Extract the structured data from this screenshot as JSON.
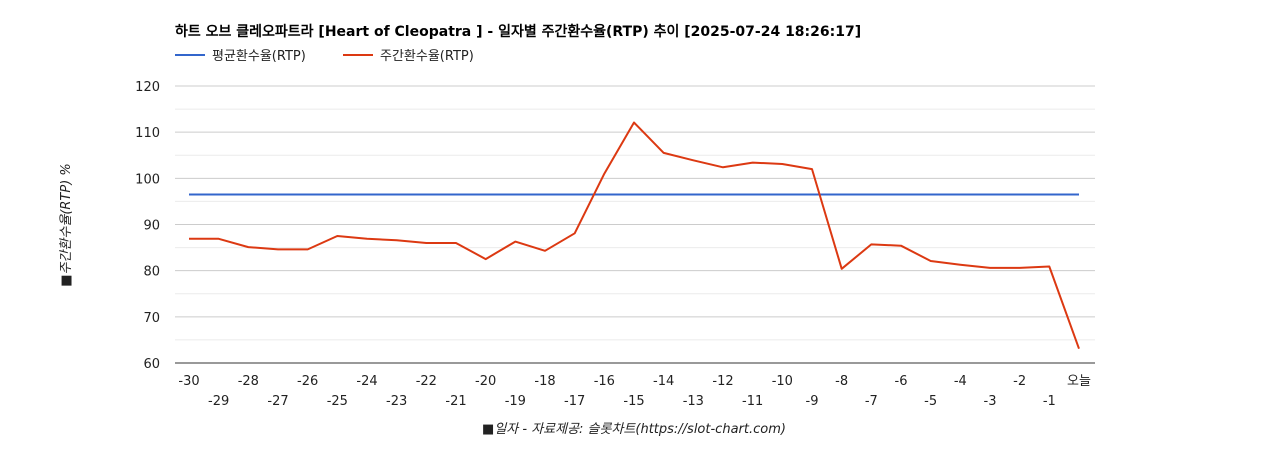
{
  "chart_data": {
    "type": "line",
    "title": "하트 오브 클레오파트라 [Heart of Cleopatra ] - 일자별 주간환수율(RTP) 추이 [2025-07-24 18:26:17]",
    "xlabel": "■일자 - 자료제공: 슬롯차트(https://slot-chart.com)",
    "ylabel": "■주간환수율(RTP) %",
    "ylim": [
      60,
      120
    ],
    "yticks": [
      "60",
      "70",
      "80",
      "90",
      "100",
      "110",
      "120"
    ],
    "categories": [
      "-30",
      "-29",
      "-28",
      "-27",
      "-26",
      "-25",
      "-24",
      "-23",
      "-22",
      "-21",
      "-20",
      "-19",
      "-18",
      "-17",
      "-16",
      "-15",
      "-14",
      "-13",
      "-12",
      "-11",
      "-10",
      "-9",
      "-8",
      "-7",
      "-6",
      "-5",
      "-4",
      "-3",
      "-2",
      "-1",
      "오늘"
    ],
    "legend_position": "top-left",
    "series": [
      {
        "name": "평균환수율(RTP)",
        "color": "#3366cc",
        "values": [
          96.5,
          96.5,
          96.5,
          96.5,
          96.5,
          96.5,
          96.5,
          96.5,
          96.5,
          96.5,
          96.5,
          96.5,
          96.5,
          96.5,
          96.5,
          96.5,
          96.5,
          96.5,
          96.5,
          96.5,
          96.5,
          96.5,
          96.5,
          96.5,
          96.5,
          96.5,
          96.5,
          96.5,
          96.5,
          96.5,
          96.5
        ]
      },
      {
        "name": "주간환수율(RTP)",
        "color": "#dc3912",
        "values": [
          86.9,
          86.9,
          85.1,
          84.6,
          84.6,
          87.5,
          86.9,
          86.6,
          86.0,
          86.0,
          82.5,
          86.3,
          84.3,
          88.1,
          101.0,
          112.1,
          105.5,
          103.9,
          102.4,
          103.4,
          103.1,
          102.0,
          80.4,
          85.7,
          85.4,
          82.1,
          81.3,
          80.6,
          80.6,
          80.9,
          63.1
        ]
      }
    ]
  }
}
